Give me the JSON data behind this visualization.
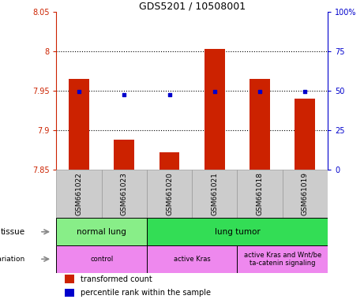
{
  "title": "GDS5201 / 10508001",
  "samples": [
    "GSM661022",
    "GSM661023",
    "GSM661020",
    "GSM661021",
    "GSM661018",
    "GSM661019"
  ],
  "bar_values": [
    7.965,
    7.888,
    7.872,
    8.003,
    7.965,
    7.94
  ],
  "bar_bottom": 7.85,
  "percentile_values": [
    49.5,
    47.5,
    47.5,
    49.5,
    49.5,
    49.8
  ],
  "bar_color": "#cc2200",
  "dot_color": "#0000cc",
  "ylim_left": [
    7.85,
    8.05
  ],
  "ylim_right": [
    0,
    100
  ],
  "yticks_left": [
    7.85,
    7.9,
    7.95,
    8.0,
    8.05
  ],
  "yticks_right": [
    0,
    25,
    50,
    75,
    100
  ],
  "ytick_labels_left": [
    "7.85",
    "7.9",
    "7.95",
    "8",
    "8.05"
  ],
  "ytick_labels_right": [
    "0",
    "25",
    "50",
    "75",
    "100%"
  ],
  "hlines": [
    7.9,
    7.95,
    8.0
  ],
  "tissue_groups": [
    {
      "label": "normal lung",
      "start": 0,
      "end": 2,
      "color": "#88ee88"
    },
    {
      "label": "lung tumor",
      "start": 2,
      "end": 6,
      "color": "#33dd55"
    }
  ],
  "genotype_groups": [
    {
      "label": "control",
      "start": 0,
      "end": 2,
      "color": "#ee88ee"
    },
    {
      "label": "active Kras",
      "start": 2,
      "end": 4,
      "color": "#ee88ee"
    },
    {
      "label": "active Kras and Wnt/be\nta-catenin signaling",
      "start": 4,
      "end": 6,
      "color": "#ee88ee"
    }
  ],
  "legend_items": [
    {
      "label": "transformed count",
      "color": "#cc2200"
    },
    {
      "label": "percentile rank within the sample",
      "color": "#0000cc"
    }
  ],
  "bar_width": 0.45,
  "background_color": "#ffffff",
  "sample_box_color": "#cccccc",
  "left_label_color": "#888888"
}
